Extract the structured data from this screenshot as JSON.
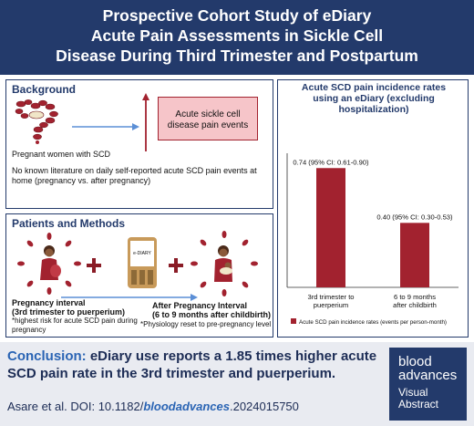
{
  "header": {
    "title_line1": "Prospective Cohort Study of eDiary",
    "title_line2": "Acute Pain Assessments in Sickle Cell",
    "title_line3": "Disease During Third Trimester and Postpartum"
  },
  "background": {
    "title": "Background",
    "effect_box": "Acute sickle cell disease pain events",
    "line1": "Pregnant women with SCD",
    "line2": "No known literature on daily self-reported acute SCD pain events at home (pregnancy vs. after pregnancy)"
  },
  "methods": {
    "title": "Patients and Methods",
    "device_label": "e-DIARY",
    "pregnancy_title": "Pregnancy interval",
    "pregnancy_sub": "(3rd trimester to puerperium)",
    "pregnancy_note": "*highest risk for acute SCD pain during pregnancy",
    "after_title": "After Pregnancy Interval",
    "after_sub": "(6 to 9 months after childbirth)",
    "after_note": "*Physiology reset to pre-pregnancy level"
  },
  "chart_data": {
    "type": "bar",
    "title": "Acute SCD pain incidence rates using an eDiary (excluding hospitalization)",
    "categories": [
      "3rd trimester to puerperium",
      "6 to 9 months after childbirth"
    ],
    "series": [
      {
        "name": "Acute SCD pain incidence rates (events per person-month)",
        "values": [
          0.74,
          0.4
        ]
      }
    ],
    "data_labels": [
      "0.74 (95% CI: 0.61-0.90)",
      "0.40 (95% CI: 0.30-0.53)"
    ],
    "ylim": [
      0,
      0.9
    ],
    "legend_position": "bottom",
    "bar_color": "#a2222f"
  },
  "conclusion": {
    "label": "Conclusion:",
    "text": "eDiary use reports a 1.85 times higher acute SCD pain rate in the 3rd trimester and puerperium."
  },
  "citation": {
    "prefix": "Asare et al. DOI: 10.1182/",
    "emph": "bloodadvances",
    "suffix": ".2024015750"
  },
  "logo": {
    "line1": "blood",
    "line2": "advances",
    "line3": "Visual",
    "line4": "Abstract"
  }
}
